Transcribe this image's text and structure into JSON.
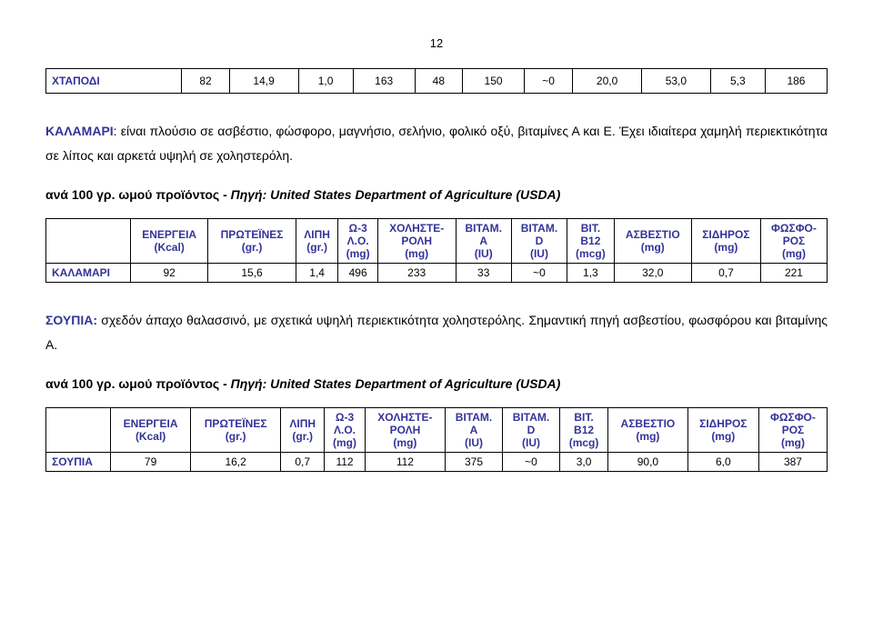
{
  "page_number": "12",
  "table1": {
    "rowlabel": "ΧΤΑΠΟΔΙ",
    "cells": [
      "82",
      "14,9",
      "1,0",
      "163",
      "48",
      "150",
      "~0",
      "20,0",
      "53,0",
      "5,3",
      "186"
    ]
  },
  "para1": {
    "lead": "ΚΑΛΑΜΑΡΙ",
    "text": ": είναι πλούσιο σε ασβέστιο, φώσφορο, μαγνήσιο, σελήνιο, φολικό οξύ, βιταμίνες Α και Ε. Έχει ιδιαίτερα χαμηλή περιεκτικότητα σε λίπος και αρκετά υψηλή σε χοληστερόλη."
  },
  "subhead_prefix": "ανά 100 γρ. ωμού προϊόντος - ",
  "subhead_source": "Πηγή: United States Department of Agriculture (USDA)",
  "headers": {
    "c0": "",
    "c1a": "ΕΝΕΡΓΕΙΑ",
    "c1b": "(Kcal)",
    "c2a": "ΠΡΩΤΕΪΝΕΣ",
    "c2b": "(gr.)",
    "c3a": "ΛΙΠΗ",
    "c3b": "(gr.)",
    "c4a": "Ω-3",
    "c4b": "Λ.Ο.",
    "c4c": "(mg)",
    "c5a": "ΧΟΛΗΣΤΕ-",
    "c5b": "ΡΟΛΗ",
    "c5c": "(mg)",
    "c6a": "ΒΙΤΑΜ.",
    "c6b": "Α",
    "c6c": "(IU)",
    "c7a": "ΒΙΤΑΜ.",
    "c7b": "D",
    "c7c": "(IU)",
    "c8a": "ΒΙΤ.",
    "c8b": "Β12",
    "c8c": "(mcg)",
    "c9a": "ΑΣΒΕΣΤΙΟ",
    "c9b": "(mg)",
    "c10a": "ΣΙΔΗΡΟΣ",
    "c10b": "(mg)",
    "c11a": "ΦΩΣΦΟ-",
    "c11b": "ΡΟΣ",
    "c11c": "(mg)"
  },
  "table2": {
    "rowlabel": "ΚΑΛΑΜΑΡΙ",
    "cells": [
      "92",
      "15,6",
      "1,4",
      "496",
      "233",
      "33",
      "~0",
      "1,3",
      "32,0",
      "0,7",
      "221"
    ]
  },
  "para2": {
    "lead": "ΣΟΥΠΙΑ:",
    "text": " σχεδόν άπαχο θαλασσινό, με σχετικά υψηλή περιεκτικότητα χοληστερόλης. Σημαντική πηγή ασβεστίου, φωσφόρου και βιταμίνης Α."
  },
  "table3": {
    "rowlabel": "ΣΟΥΠΙΑ",
    "cells": [
      "79",
      "16,2",
      "0,7",
      "112",
      "112",
      "375",
      "~0",
      "3,0",
      "90,0",
      "6,0",
      "387"
    ]
  },
  "colors": {
    "heading": "#333399",
    "border": "#000000"
  }
}
